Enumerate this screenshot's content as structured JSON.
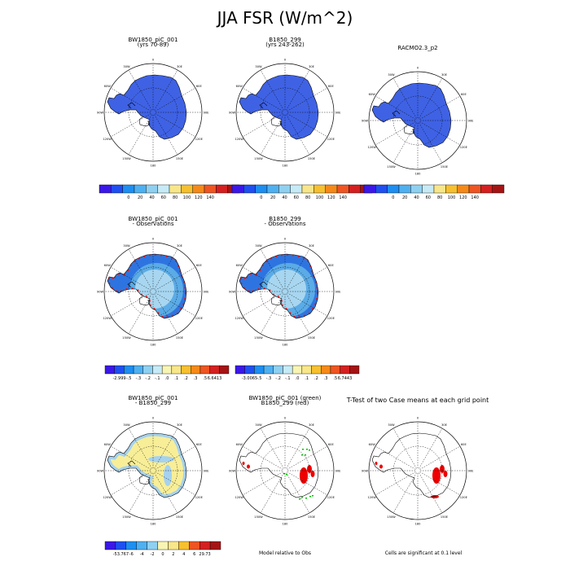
{
  "title": "JJA FSR (W/m^2)",
  "lon_labels": [
    "0",
    "30E",
    "60E",
    "90E",
    "120E",
    "150E",
    "180",
    "150W",
    "120W",
    "90W",
    "60W",
    "30W"
  ],
  "colors": {
    "land_fill": "#3f62e4",
    "land_fill_edge": "#3552d0",
    "diff_yellow": "#f8ee98",
    "diff_blue": "#a6d2ee",
    "sig_red": "#ee0000",
    "sig_green": "#00c000",
    "obs_light": "#a8d6f0",
    "obs_mid": "#5aabe6",
    "obs_blue": "#2e74e0",
    "obs_red": "#e01818"
  },
  "colorbars": {
    "main": {
      "colors": [
        "#3b18e8",
        "#1f4ff0",
        "#1e8ef0",
        "#4fb0f0",
        "#8fd0f0",
        "#c6ebf6",
        "#f8e68a",
        "#f6c030",
        "#f58a1a",
        "#ee5522",
        "#d42020",
        "#a51414"
      ],
      "labels": [
        "0",
        "20",
        "40",
        "60",
        "80",
        "100",
        "120",
        "140"
      ]
    },
    "bias1": {
      "colors": [
        "#3b18e8",
        "#1f4ff0",
        "#1e8ef0",
        "#4fb0f0",
        "#8fd0f0",
        "#c6ebf6",
        "#f8f4b4",
        "#f8e68a",
        "#f6c030",
        "#f58a1a",
        "#ee5522",
        "#d42020",
        "#a51414"
      ],
      "labels": [
        "-2.999",
        "-.5",
        "-.3",
        "-.2",
        "-.1",
        ".0",
        ".1",
        ".2",
        ".3",
        ".5",
        "6.6413"
      ]
    },
    "bias2": {
      "colors": [
        "#3b18e8",
        "#1f4ff0",
        "#1e8ef0",
        "#4fb0f0",
        "#8fd0f0",
        "#c6ebf6",
        "#f8f4b4",
        "#f8e68a",
        "#f6c030",
        "#f58a1a",
        "#ee5522",
        "#d42020",
        "#a51414"
      ],
      "labels": [
        "-3.0065",
        "-.5",
        "-.3",
        "-.2",
        "-.1",
        ".0",
        ".1",
        ".2",
        ".3",
        ".5",
        "6.7443"
      ]
    },
    "diff": {
      "colors": [
        "#3b18e8",
        "#1f4ff0",
        "#1e8ef0",
        "#4fb0f0",
        "#8fd0f0",
        "#f8f4b4",
        "#f8e68a",
        "#f6c030",
        "#ee5522",
        "#d42020",
        "#a51414"
      ],
      "labels": [
        "-53.767",
        "-6",
        "-4",
        "-2",
        "0",
        "2",
        "4",
        "6",
        "29.73"
      ]
    }
  },
  "panels": {
    "p1": {
      "title1": "BW1850_piC_001",
      "title2": "(yrs 70-89)",
      "kind": "field"
    },
    "p2": {
      "title1": "B1850_299",
      "title2": "(yrs 243-262)",
      "kind": "field"
    },
    "p3": {
      "title1": "RACMO2.3_p2",
      "title2": "",
      "kind": "field"
    },
    "p4": {
      "title1": "BW1850_piC_001",
      "title2": "- Observations",
      "kind": "bias"
    },
    "p5": {
      "title1": "B1850_299",
      "title2": "- Observations",
      "kind": "bias"
    },
    "p6": {
      "title1": "BW1850_piC_001",
      "title2": "- B1850_299",
      "kind": "diff"
    },
    "p7": {
      "title1": "BW1850_piC_001 (green)",
      "title2": "B1850_299 (red)",
      "kind": "sig"
    },
    "p8": {
      "title1": "T-Test of two Case means at each grid point",
      "title2": "",
      "kind": "ttest"
    }
  },
  "notes": {
    "model_relative": "Model relative to Obs",
    "significance": "Cells are significant at 0.1 level"
  }
}
